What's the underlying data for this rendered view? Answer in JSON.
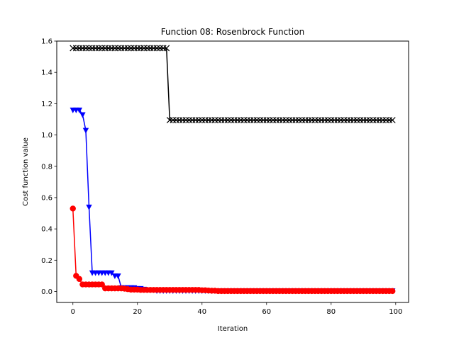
{
  "chart_data": {
    "type": "line",
    "title": "Function 08: Rosenbrock Function",
    "xlabel": "Iteration",
    "ylabel": "Cost function value",
    "xlim": [
      -5,
      104
    ],
    "ylim": [
      -0.07,
      1.6
    ],
    "xticks": [
      0,
      20,
      40,
      60,
      80,
      100
    ],
    "yticks": [
      0.0,
      0.2,
      0.4,
      0.6,
      0.8,
      1.0,
      1.2,
      1.4,
      1.6
    ],
    "xtick_labels": [
      "0",
      "20",
      "40",
      "60",
      "80",
      "100"
    ],
    "ytick_labels": [
      "0.0",
      "0.2",
      "0.4",
      "0.6",
      "0.8",
      "1.0",
      "1.2",
      "1.4",
      "1.6"
    ],
    "legend": "none",
    "series": [
      {
        "name": "black",
        "color": "#000000",
        "marker": "x",
        "segments": [
          {
            "from": 0,
            "to": 29,
            "value": 1.555
          },
          {
            "from": 30,
            "to": 99,
            "value": 1.095
          }
        ]
      },
      {
        "name": "blue",
        "color": "#0000ff",
        "marker": "triangle-down",
        "points": [
          [
            0,
            1.16
          ],
          [
            1,
            1.16
          ],
          [
            2,
            1.16
          ],
          [
            3,
            1.13
          ],
          [
            4,
            1.03
          ],
          [
            5,
            0.54
          ],
          [
            6,
            0.12
          ],
          [
            7,
            0.12
          ],
          [
            8,
            0.12
          ],
          [
            9,
            0.12
          ],
          [
            10,
            0.12
          ],
          [
            11,
            0.12
          ],
          [
            12,
            0.12
          ],
          [
            13,
            0.1
          ],
          [
            14,
            0.1
          ],
          [
            15,
            0.025
          ],
          [
            16,
            0.025
          ],
          [
            17,
            0.025
          ],
          [
            18,
            0.025
          ],
          [
            19,
            0.025
          ],
          [
            20,
            0.02
          ],
          [
            21,
            0.02
          ],
          [
            22,
            0.015
          ],
          [
            23,
            0.01
          ],
          [
            24,
            0.01
          ],
          [
            25,
            0.01
          ]
        ],
        "tail": {
          "from": 26,
          "to": 99,
          "value": 0.005
        }
      },
      {
        "name": "red",
        "color": "#ff0000",
        "marker": "circle",
        "points": [
          [
            0,
            0.53
          ],
          [
            1,
            0.1
          ],
          [
            2,
            0.08
          ],
          [
            3,
            0.045
          ],
          [
            4,
            0.045
          ],
          [
            5,
            0.045
          ],
          [
            6,
            0.045
          ],
          [
            7,
            0.045
          ],
          [
            8,
            0.045
          ],
          [
            9,
            0.045
          ],
          [
            10,
            0.02
          ],
          [
            11,
            0.02
          ],
          [
            12,
            0.02
          ],
          [
            13,
            0.02
          ],
          [
            14,
            0.02
          ],
          [
            15,
            0.02
          ],
          [
            16,
            0.018
          ],
          [
            17,
            0.015
          ],
          [
            18,
            0.012
          ],
          [
            19,
            0.012
          ],
          [
            20,
            0.012
          ],
          [
            21,
            0.01
          ],
          [
            22,
            0.01
          ],
          [
            23,
            0.01
          ],
          [
            24,
            0.01
          ],
          [
            25,
            0.01
          ],
          [
            26,
            0.01
          ],
          [
            27,
            0.01
          ],
          [
            28,
            0.01
          ],
          [
            29,
            0.01
          ],
          [
            30,
            0.01
          ],
          [
            31,
            0.01
          ],
          [
            32,
            0.01
          ],
          [
            33,
            0.01
          ],
          [
            34,
            0.01
          ],
          [
            35,
            0.01
          ],
          [
            36,
            0.01
          ],
          [
            37,
            0.01
          ],
          [
            38,
            0.01
          ],
          [
            39,
            0.01
          ],
          [
            40,
            0.008
          ],
          [
            41,
            0.008
          ],
          [
            42,
            0.006
          ],
          [
            43,
            0.005
          ],
          [
            44,
            0.005
          ]
        ],
        "tail": {
          "from": 45,
          "to": 99,
          "value": 0.003
        }
      }
    ]
  }
}
